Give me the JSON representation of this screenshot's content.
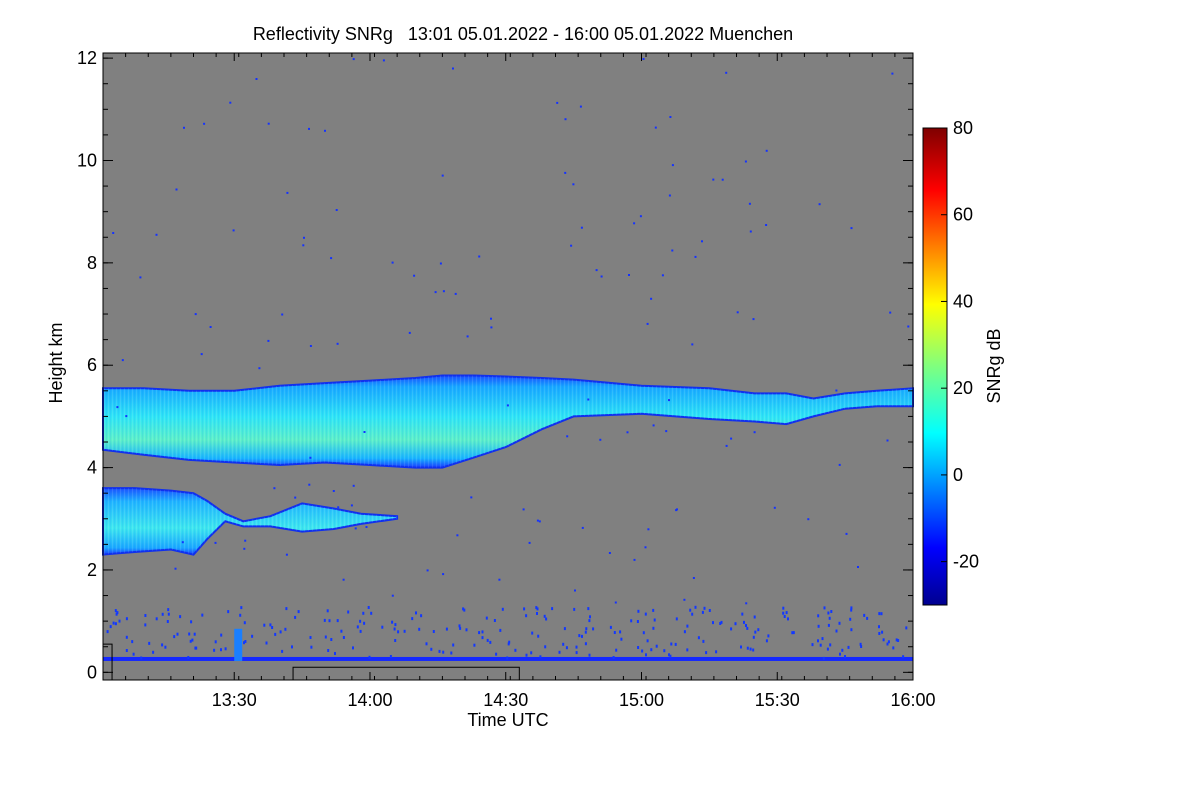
{
  "chart_data": {
    "type": "heatmap",
    "title": "Reflectivity SNRg   13:01 05.01.2022 - 16:00 05.01.2022 Muenchen",
    "xlabel": "Time UTC",
    "ylabel": "Height km",
    "xlim_minutes": [
      781,
      960
    ],
    "ylim": [
      -0.15,
      12.1
    ],
    "x_ticks": [
      {
        "label": "13:30",
        "minutes": 810
      },
      {
        "label": "14:00",
        "minutes": 840
      },
      {
        "label": "14:30",
        "minutes": 870
      },
      {
        "label": "15:00",
        "minutes": 900
      },
      {
        "label": "15:30",
        "minutes": 930
      },
      {
        "label": "16:00",
        "minutes": 960
      }
    ],
    "y_ticks": [
      0,
      2,
      4,
      6,
      8,
      10,
      12
    ],
    "background_color": "#808080",
    "colorbar": {
      "label": "SNRg dB",
      "range": [
        -30,
        80
      ],
      "ticks": [
        -20,
        0,
        20,
        40,
        60,
        80
      ],
      "colormap": "jet"
    },
    "layers": [
      {
        "name": "upper-cloud",
        "t": [
          781,
          790,
          800,
          810,
          820,
          830,
          840,
          850,
          856,
          863,
          870,
          878,
          885,
          900,
          915,
          925,
          932,
          938,
          945,
          952,
          960
        ],
        "base": [
          4.35,
          4.25,
          4.15,
          4.1,
          4.05,
          4.1,
          4.05,
          4.0,
          4.0,
          4.2,
          4.4,
          4.75,
          5.0,
          5.05,
          4.95,
          4.9,
          4.85,
          5.0,
          5.15,
          5.2,
          5.2
        ],
        "top": [
          5.55,
          5.55,
          5.5,
          5.5,
          5.6,
          5.65,
          5.7,
          5.75,
          5.8,
          5.8,
          5.78,
          5.75,
          5.72,
          5.6,
          5.55,
          5.45,
          5.45,
          5.35,
          5.45,
          5.5,
          5.55
        ],
        "snr_db": 10
      },
      {
        "name": "lower-cloud",
        "t": [
          781,
          788,
          796,
          801,
          804,
          808,
          812,
          818,
          825,
          832,
          838,
          846
        ],
        "base": [
          2.3,
          2.35,
          2.4,
          2.3,
          2.6,
          2.95,
          2.85,
          2.85,
          2.75,
          2.8,
          2.9,
          3.0
        ],
        "top": [
          3.6,
          3.6,
          3.55,
          3.5,
          3.35,
          3.1,
          2.95,
          3.05,
          3.3,
          3.2,
          3.1,
          3.05
        ],
        "snr_db": 5
      }
    ],
    "ground_clutter": {
      "height_top": 0.3,
      "level_height": 0.25,
      "snr_db": -20
    },
    "annotations": []
  }
}
